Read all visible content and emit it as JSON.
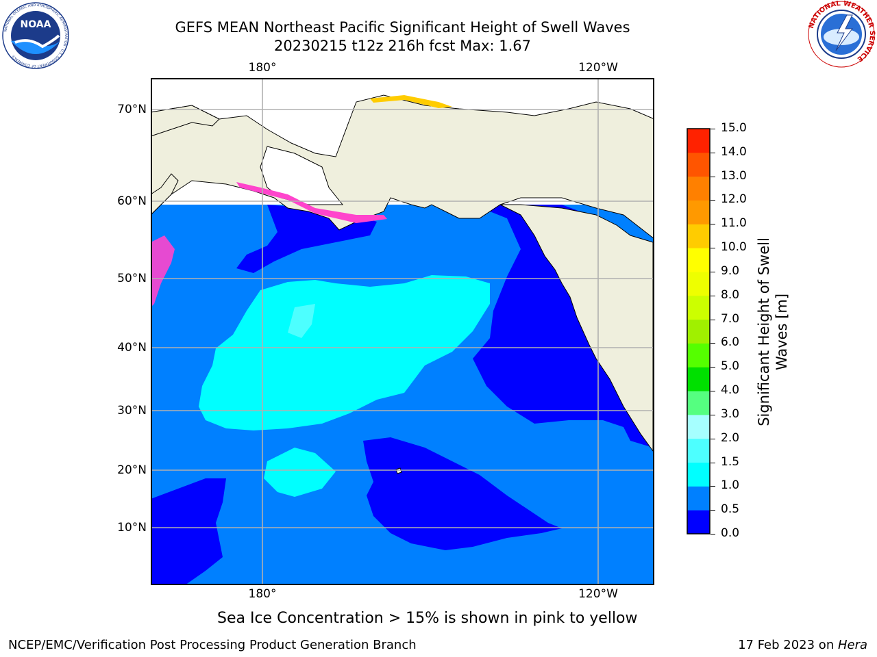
{
  "header": {
    "title_line1": "GEFS MEAN Northeast Pacific Significant Height of Swell Waves",
    "title_line2": "20230215 t12z 216h fcst   Max: 1.67"
  },
  "logos": {
    "left": "NOAA",
    "left_ring_text": "NATIONAL OCEANIC AND ATMOSPHERIC ADMINISTRATION · U.S. DEPARTMENT OF COMMERCE",
    "right_ring_text": "NATIONAL WEATHER SERVICE"
  },
  "map": {
    "top_lon_labels": [
      "180°",
      "120°W"
    ],
    "bottom_lon_labels": [
      "180°",
      "120°W"
    ],
    "lat_labels": [
      "70°N",
      "60°N",
      "50°N",
      "40°N",
      "30°N",
      "20°N",
      "10°N"
    ]
  },
  "colorbar": {
    "label_line1": "Significant Height of Swell",
    "label_line2": "Waves [m]",
    "ticks": [
      "0.0",
      "0.5",
      "1.0",
      "1.5",
      "2.0",
      "3.0",
      "4.0",
      "5.0",
      "6.0",
      "7.0",
      "8.0",
      "9.0",
      "10.0",
      "11.0",
      "12.0",
      "13.0",
      "14.0",
      "15.0"
    ],
    "colors": [
      "#0000ff",
      "#0080ff",
      "#00ffff",
      "#4dffff",
      "#a6ffff",
      "#55ff80",
      "#00e000",
      "#55ff00",
      "#a0f000",
      "#ccff00",
      "#eeff00",
      "#ffff00",
      "#ffcc00",
      "#ff9900",
      "#ff8000",
      "#ff5500",
      "#ff2200",
      "#ff0000"
    ]
  },
  "colors": {
    "land": "#efefdd",
    "ocean_low": "#0000ff",
    "ocean_mid": "#0080ff",
    "ocean_high": "#00ffff",
    "sea_ice": "#ff44cc"
  },
  "caption": "Sea Ice Concentration > 15% is shown in pink to yellow",
  "footer": {
    "left": "NCEP/EMC/Verification Post Processing Product Generation Branch",
    "right_prefix": "17 Feb 2023 on ",
    "right_host": "Hera"
  }
}
